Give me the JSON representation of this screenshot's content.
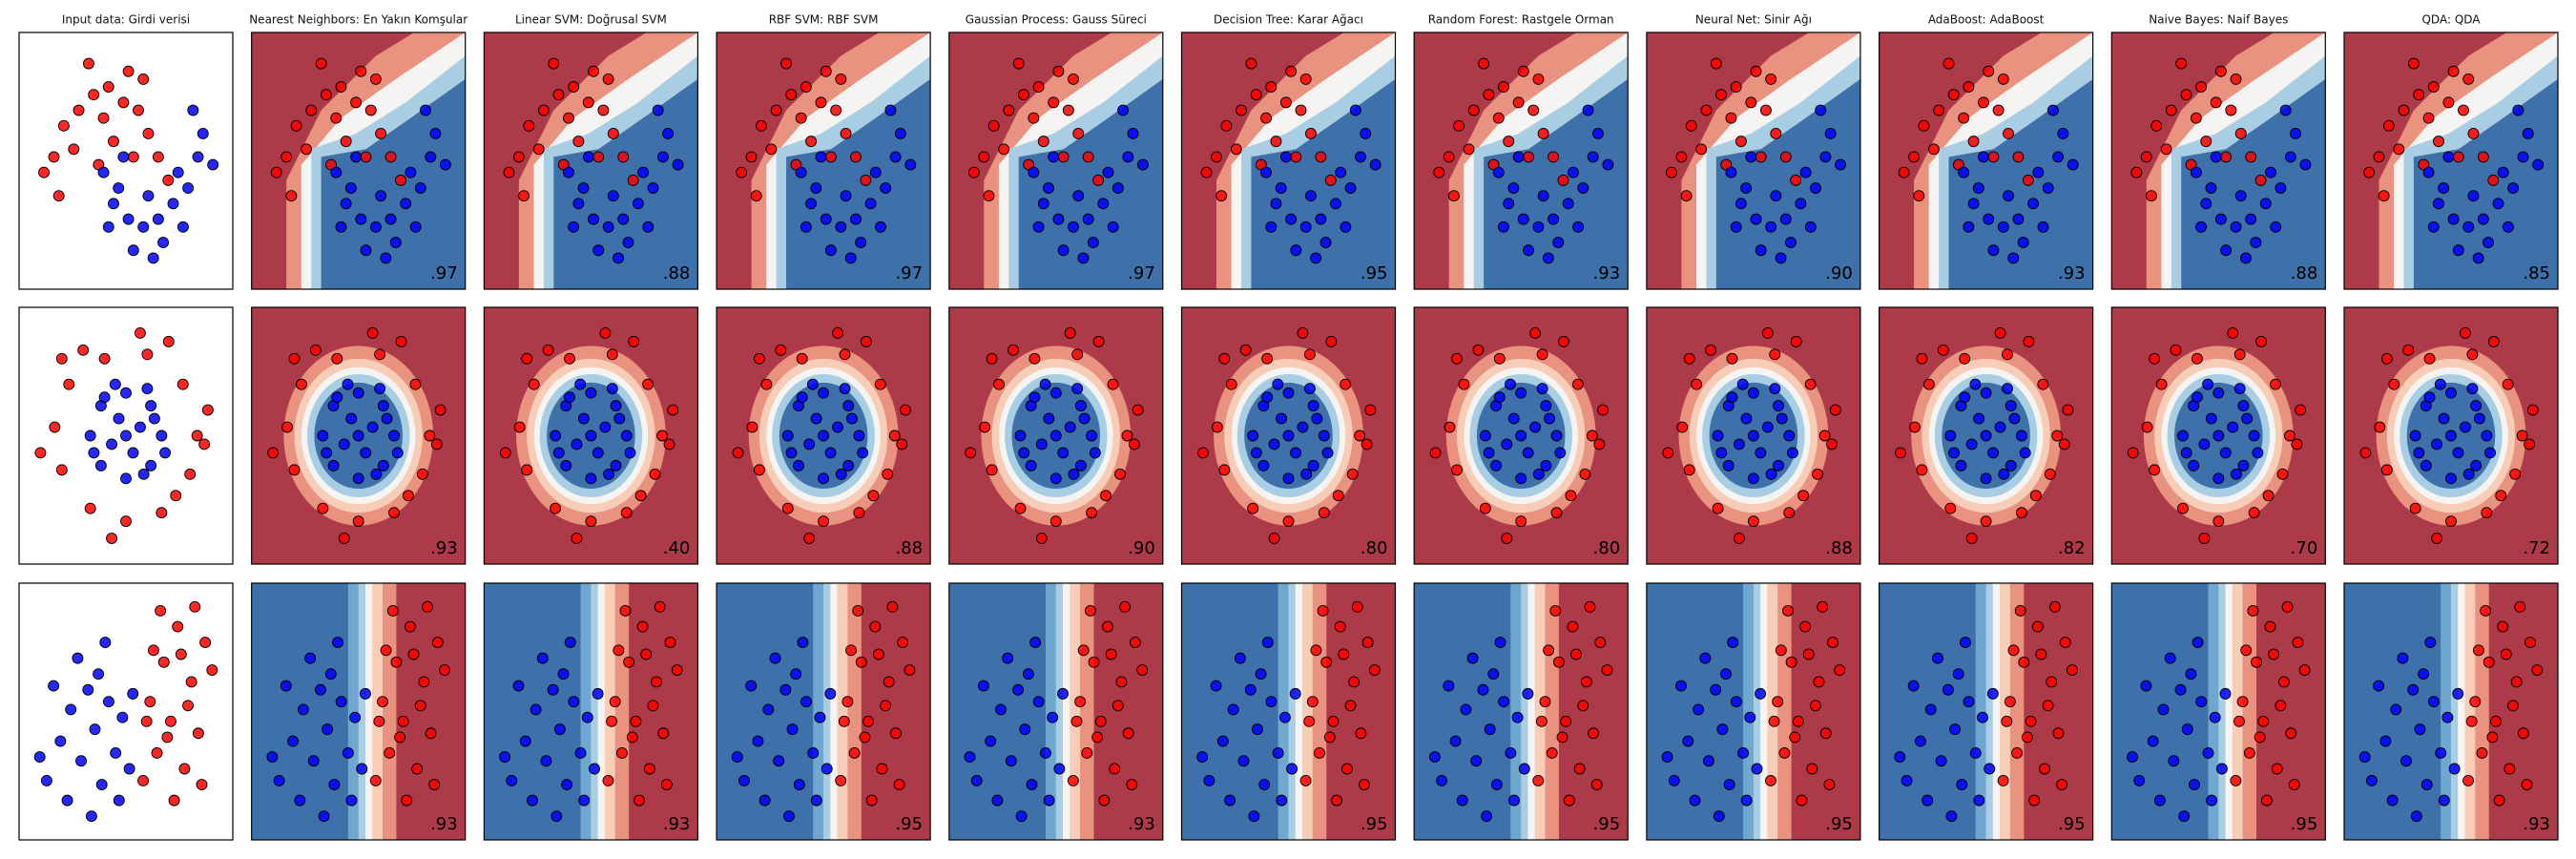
{
  "column_titles": [
    "Input data: Girdi verisi",
    "Nearest Neighbors: En Yakın Komşular",
    "Linear SVM: Doğrusal SVM",
    "RBF SVM: RBF SVM",
    "Gaussian Process: Gauss Süreci",
    "Decision Tree: Karar Ağacı",
    "Random Forest: Rastgele Orman",
    "Neural Net: Sinir Ağı",
    "AdaBoost: AdaBoost",
    "Naive Bayes: Naif Bayes",
    "QDA: QDA"
  ],
  "chart_data": [
    {
      "type": "scatter",
      "xlim": [
        -1.7,
        2.6
      ],
      "ylim": [
        -1.4,
        1.9
      ],
      "score_labels": [
        ".97",
        ".88",
        ".97",
        ".97",
        ".95",
        ".93",
        ".90",
        ".93",
        ".88",
        ".85"
      ],
      "series": [
        {
          "color": "#ff0000",
          "x": [
            -1.0,
            -0.8,
            -0.5,
            -0.2,
            0.1,
            0.4,
            0.7,
            0.9,
            1.1,
            -1.2,
            -0.6,
            0.0,
            0.5,
            -0.3,
            0.2,
            1.3,
            -0.9,
            0.8,
            -0.1,
            0.6
          ],
          "values": [
            0.3,
            0.7,
            0.9,
            1.1,
            1.2,
            1.0,
            0.9,
            0.6,
            0.3,
            0.1,
            0.4,
            0.8,
            1.4,
            1.5,
            0.5,
            0.0,
            -0.2,
            1.3,
            0.2,
            0.3
          ]
        },
        {
          "color": "#0000ff",
          "x": [
            0.0,
            0.2,
            0.5,
            0.8,
            1.1,
            1.4,
            1.7,
            1.9,
            2.0,
            0.3,
            0.9,
            1.2,
            1.6,
            0.6,
            1.8,
            2.2,
            0.1,
            1.0,
            1.5,
            0.4
          ],
          "values": [
            0.1,
            -0.3,
            -0.5,
            -0.6,
            -0.5,
            -0.3,
            -0.1,
            0.3,
            0.6,
            -0.1,
            -0.2,
            -0.8,
            -0.6,
            -0.9,
            0.9,
            0.2,
            -0.6,
            -1.0,
            0.1,
            0.3
          ]
        }
      ]
    },
    {
      "type": "scatter",
      "xlim": [
        -1.5,
        1.5
      ],
      "ylim": [
        -1.5,
        1.5
      ],
      "score_labels": [
        ".93",
        ".40",
        ".88",
        ".90",
        ".80",
        ".80",
        ".88",
        ".82",
        ".70",
        ".72"
      ],
      "series": [
        {
          "color": "#ff0000",
          "x": [
            1.0,
            0.8,
            0.3,
            -0.3,
            -0.8,
            -1.0,
            -0.9,
            -0.5,
            0.0,
            0.5,
            0.9,
            1.15,
            0.6,
            -0.6,
            -1.2,
            -0.2,
            0.7,
            1.1,
            -0.9,
            0.2
          ],
          "values": [
            0.0,
            0.6,
            0.95,
            0.9,
            0.6,
            0.1,
            -0.4,
            -0.85,
            -1.0,
            -0.9,
            -0.45,
            0.3,
            1.1,
            1.0,
            -0.2,
            -1.2,
            -0.7,
            -0.1,
            0.9,
            1.2
          ]
        },
        {
          "color": "#0000ff",
          "x": [
            0.5,
            0.35,
            0.0,
            -0.35,
            -0.5,
            -0.35,
            0.0,
            0.35,
            0.2,
            -0.1,
            0.1,
            -0.2,
            0.4,
            -0.3,
            0.25,
            -0.45,
            0.0,
            0.55,
            -0.15,
            0.3
          ],
          "values": [
            0.0,
            0.35,
            0.5,
            0.35,
            0.0,
            -0.35,
            -0.5,
            -0.35,
            0.1,
            0.2,
            -0.2,
            -0.1,
            0.2,
            0.45,
            -0.45,
            -0.2,
            0.0,
            -0.2,
            0.6,
            0.55
          ]
        }
      ]
    },
    {
      "type": "scatter",
      "xlim": [
        -3.0,
        3.2
      ],
      "ylim": [
        -3.0,
        3.5
      ],
      "score_labels": [
        ".93",
        ".93",
        ".95",
        ".93",
        ".95",
        ".95",
        ".95",
        ".95",
        ".95",
        ".93"
      ],
      "series": [
        {
          "color": "#ff0000",
          "x": [
            0.8,
            1.0,
            1.2,
            1.4,
            1.6,
            1.8,
            2.0,
            2.2,
            2.4,
            0.6,
            1.1,
            1.5,
            1.9,
            2.6,
            0.9,
            1.3,
            2.1,
            0.7,
            1.7,
            2.3
          ],
          "values": [
            0.5,
            -0.8,
            1.5,
            0.0,
            2.4,
            -1.2,
            1.0,
            -0.3,
            2.0,
            -1.5,
            2.8,
            -2.0,
            0.4,
            1.3,
            1.8,
            -0.4,
            2.9,
            0.0,
            1.7,
            -1.6
          ]
        },
        {
          "color": "#0000ff",
          "x": [
            -2.2,
            -1.8,
            -1.5,
            -1.2,
            -1.0,
            -0.8,
            -0.6,
            -0.4,
            -0.2,
            0.0,
            -1.6,
            -2.0,
            -0.9,
            0.2,
            -1.3,
            -0.5,
            0.3,
            -2.4,
            -0.1,
            -0.7
          ],
          "values": [
            -1.5,
            -0.5,
            0.3,
            -1.0,
            0.8,
            -0.2,
            -1.6,
            0.5,
            -0.8,
            0.1,
            -2.0,
            0.9,
            -2.4,
            -1.2,
            1.6,
            2.0,
            0.7,
            -0.9,
            -2.0,
            1.2
          ]
        }
      ]
    }
  ]
}
